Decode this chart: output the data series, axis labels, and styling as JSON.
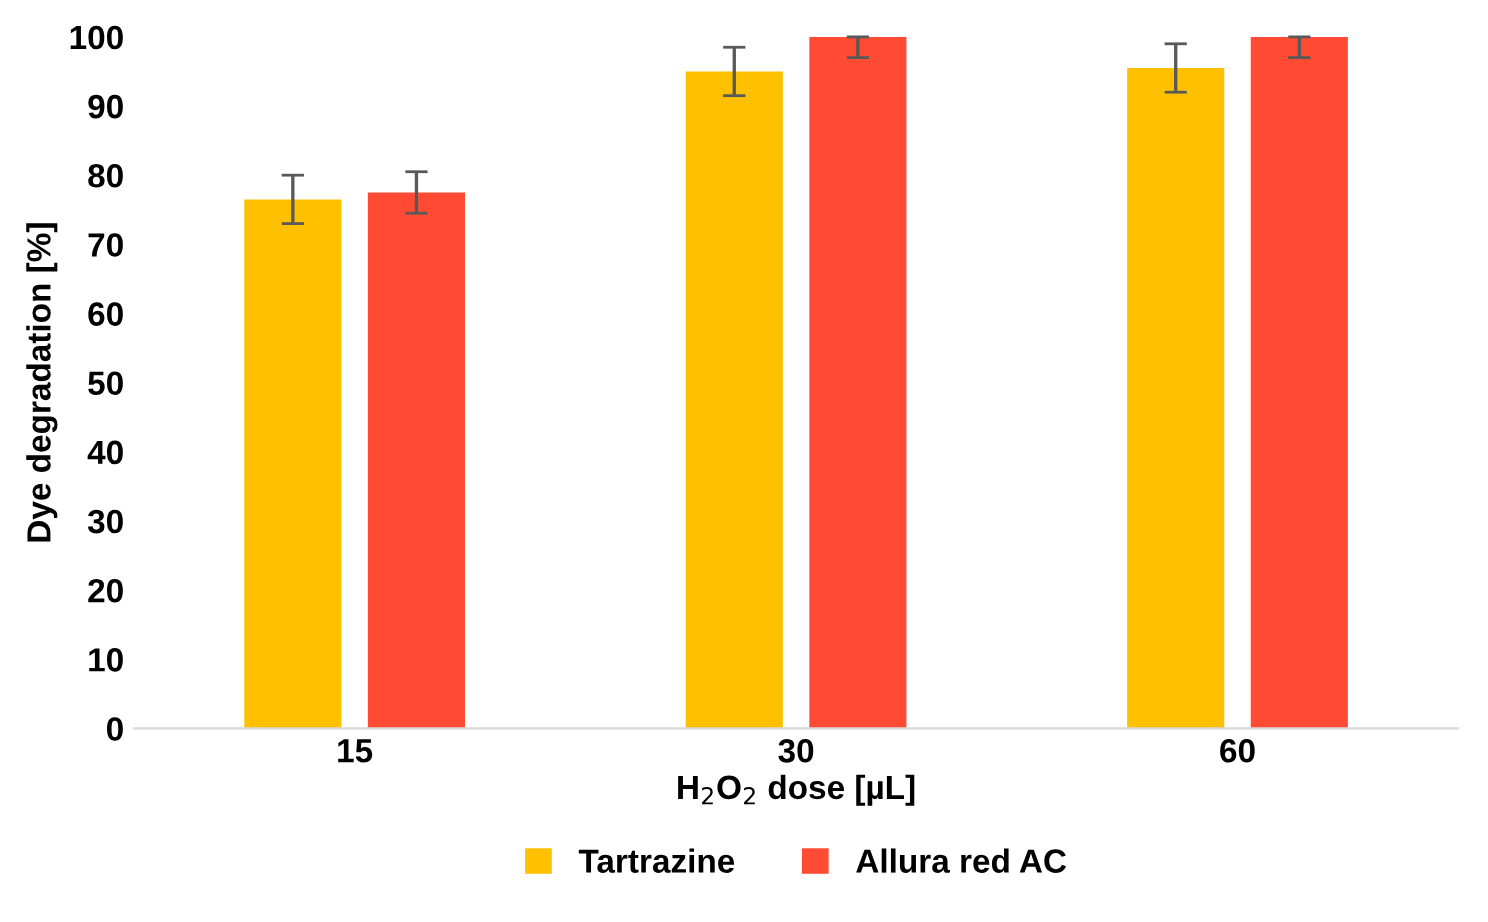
{
  "chart_data": {
    "type": "bar",
    "categories": [
      "15",
      "30",
      "60"
    ],
    "xlabel": "H$_{2}$O$_{2}$ dose [µL]",
    "ylabel": "Dye degradation [%]",
    "series": [
      {
        "name": "Tartrazine",
        "color": "#ffc000",
        "values": [
          76.5,
          95,
          95.5
        ],
        "errors": [
          [
            73,
            80
          ],
          [
            91.5,
            98.5
          ],
          [
            92,
            99
          ]
        ]
      },
      {
        "name": "Allura red AC",
        "color": "#ff4b33",
        "values": [
          77.5,
          100,
          100
        ],
        "errors": [
          [
            74.5,
            80.5
          ],
          [
            97,
            100
          ],
          [
            97,
            100
          ]
        ]
      }
    ],
    "ylim": [
      0,
      100
    ],
    "yticks": [
      0,
      10,
      20,
      30,
      40,
      50,
      60,
      70,
      80,
      90,
      100
    ],
    "grid": false,
    "legend": "bottom"
  }
}
